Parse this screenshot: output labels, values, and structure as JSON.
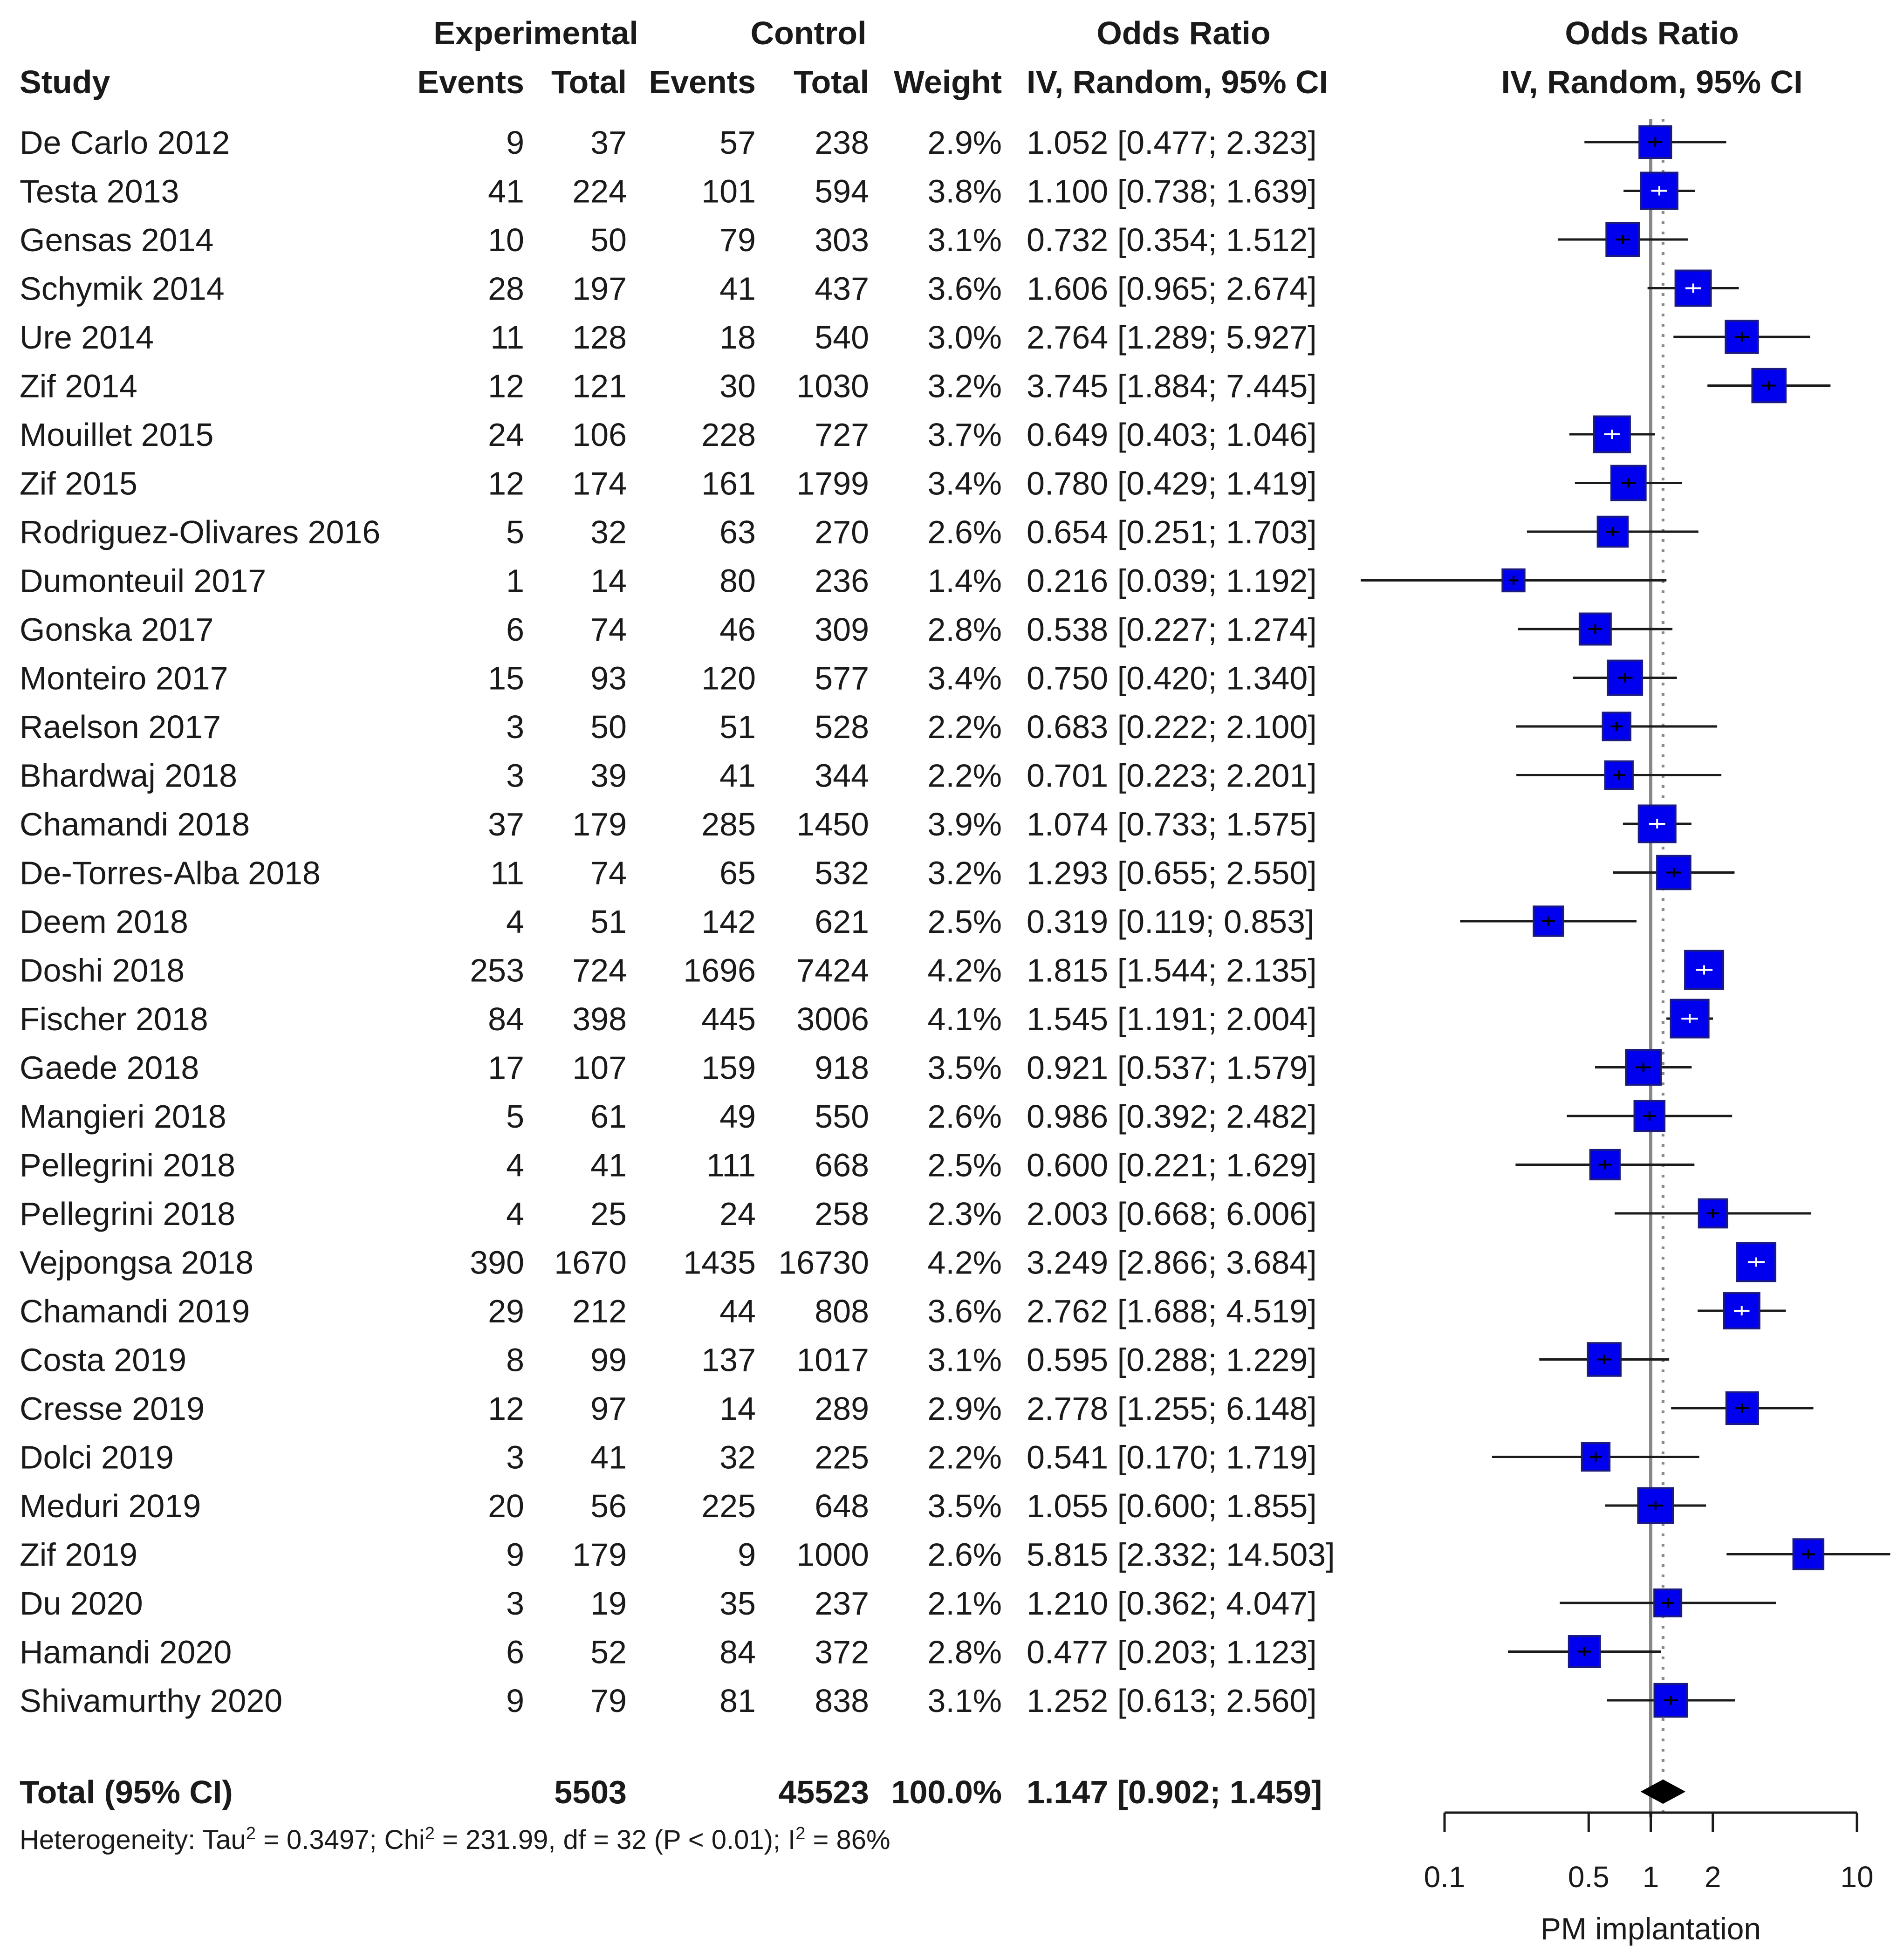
{
  "chart_data": {
    "type": "forest",
    "headers": {
      "experimental": "Experimental",
      "control": "Control",
      "odds_ratio_table": "Odds Ratio",
      "odds_ratio_plot": "Odds Ratio",
      "study": "Study",
      "exp_events": "Events",
      "exp_total": "Total",
      "ctl_events": "Events",
      "ctl_total": "Total",
      "weight": "Weight",
      "method_table": "IV, Random, 95% CI",
      "method_plot": "IV, Random, 95% CI"
    },
    "studies": [
      {
        "study": "De Carlo 2012",
        "exp_events": "9",
        "exp_total": "37",
        "ctl_events": "57",
        "ctl_total": "238",
        "weight": "2.9%",
        "ci_text": "1.052 [0.477;  2.323]",
        "or": 1.052,
        "lo": 0.477,
        "hi": 2.323,
        "w": 2.9
      },
      {
        "study": "Testa 2013",
        "exp_events": "41",
        "exp_total": "224",
        "ctl_events": "101",
        "ctl_total": "594",
        "weight": "3.8%",
        "ci_text": "1.100 [0.738;  1.639]",
        "or": 1.1,
        "lo": 0.738,
        "hi": 1.639,
        "w": 3.8
      },
      {
        "study": "Gensas 2014",
        "exp_events": "10",
        "exp_total": "50",
        "ctl_events": "79",
        "ctl_total": "303",
        "weight": "3.1%",
        "ci_text": "0.732 [0.354;  1.512]",
        "or": 0.732,
        "lo": 0.354,
        "hi": 1.512,
        "w": 3.1
      },
      {
        "study": "Schymik 2014",
        "exp_events": "28",
        "exp_total": "197",
        "ctl_events": "41",
        "ctl_total": "437",
        "weight": "3.6%",
        "ci_text": "1.606 [0.965;  2.674]",
        "or": 1.606,
        "lo": 0.965,
        "hi": 2.674,
        "w": 3.6
      },
      {
        "study": "Ure 2014",
        "exp_events": "11",
        "exp_total": "128",
        "ctl_events": "18",
        "ctl_total": "540",
        "weight": "3.0%",
        "ci_text": "2.764 [1.289;  5.927]",
        "or": 2.764,
        "lo": 1.289,
        "hi": 5.927,
        "w": 3.0
      },
      {
        "study": "Zif 2014",
        "exp_events": "12",
        "exp_total": "121",
        "ctl_events": "30",
        "ctl_total": "1030",
        "weight": "3.2%",
        "ci_text": "3.745 [1.884;  7.445]",
        "or": 3.745,
        "lo": 1.884,
        "hi": 7.445,
        "w": 3.2
      },
      {
        "study": "Mouillet 2015",
        "exp_events": "24",
        "exp_total": "106",
        "ctl_events": "228",
        "ctl_total": "727",
        "weight": "3.7%",
        "ci_text": "0.649 [0.403;  1.046]",
        "or": 0.649,
        "lo": 0.403,
        "hi": 1.046,
        "w": 3.7
      },
      {
        "study": "Zif 2015",
        "exp_events": "12",
        "exp_total": "174",
        "ctl_events": "161",
        "ctl_total": "1799",
        "weight": "3.4%",
        "ci_text": "0.780 [0.429;  1.419]",
        "or": 0.78,
        "lo": 0.429,
        "hi": 1.419,
        "w": 3.4
      },
      {
        "study": "Rodriguez-Olivares 2016",
        "exp_events": "5",
        "exp_total": "32",
        "ctl_events": "63",
        "ctl_total": "270",
        "weight": "2.6%",
        "ci_text": "0.654 [0.251;  1.703]",
        "or": 0.654,
        "lo": 0.251,
        "hi": 1.703,
        "w": 2.6
      },
      {
        "study": "Dumonteuil 2017",
        "exp_events": "1",
        "exp_total": "14",
        "ctl_events": "80",
        "ctl_total": "236",
        "weight": "1.4%",
        "ci_text": "0.216 [0.039;  1.192]",
        "or": 0.216,
        "lo": 0.039,
        "hi": 1.192,
        "w": 1.4
      },
      {
        "study": "Gonska 2017",
        "exp_events": "6",
        "exp_total": "74",
        "ctl_events": "46",
        "ctl_total": "309",
        "weight": "2.8%",
        "ci_text": "0.538 [0.227;  1.274]",
        "or": 0.538,
        "lo": 0.227,
        "hi": 1.274,
        "w": 2.8
      },
      {
        "study": "Monteiro 2017",
        "exp_events": "15",
        "exp_total": "93",
        "ctl_events": "120",
        "ctl_total": "577",
        "weight": "3.4%",
        "ci_text": "0.750 [0.420;  1.340]",
        "or": 0.75,
        "lo": 0.42,
        "hi": 1.34,
        "w": 3.4
      },
      {
        "study": "Raelson 2017",
        "exp_events": "3",
        "exp_total": "50",
        "ctl_events": "51",
        "ctl_total": "528",
        "weight": "2.2%",
        "ci_text": "0.683 [0.222;  2.100]",
        "or": 0.683,
        "lo": 0.222,
        "hi": 2.1,
        "w": 2.2
      },
      {
        "study": "Bhardwaj  2018",
        "exp_events": "3",
        "exp_total": "39",
        "ctl_events": "41",
        "ctl_total": "344",
        "weight": "2.2%",
        "ci_text": "0.701 [0.223;  2.201]",
        "or": 0.701,
        "lo": 0.223,
        "hi": 2.201,
        "w": 2.2
      },
      {
        "study": "Chamandi 2018",
        "exp_events": "37",
        "exp_total": "179",
        "ctl_events": "285",
        "ctl_total": "1450",
        "weight": "3.9%",
        "ci_text": "1.074 [0.733;  1.575]",
        "or": 1.074,
        "lo": 0.733,
        "hi": 1.575,
        "w": 3.9
      },
      {
        "study": "De-Torres-Alba 2018",
        "exp_events": "11",
        "exp_total": "74",
        "ctl_events": "65",
        "ctl_total": "532",
        "weight": "3.2%",
        "ci_text": "1.293 [0.655;  2.550]",
        "or": 1.293,
        "lo": 0.655,
        "hi": 2.55,
        "w": 3.2
      },
      {
        "study": "Deem 2018",
        "exp_events": "4",
        "exp_total": "51",
        "ctl_events": "142",
        "ctl_total": "621",
        "weight": "2.5%",
        "ci_text": "0.319 [0.119;  0.853]",
        "or": 0.319,
        "lo": 0.119,
        "hi": 0.853,
        "w": 2.5
      },
      {
        "study": "Doshi 2018",
        "exp_events": "253",
        "exp_total": "724",
        "ctl_events": "1696",
        "ctl_total": "7424",
        "weight": "4.2%",
        "ci_text": "1.815 [1.544;  2.135]",
        "or": 1.815,
        "lo": 1.544,
        "hi": 2.135,
        "w": 4.2
      },
      {
        "study": "Fischer 2018",
        "exp_events": "84",
        "exp_total": "398",
        "ctl_events": "445",
        "ctl_total": "3006",
        "weight": "4.1%",
        "ci_text": "1.545 [1.191;  2.004]",
        "or": 1.545,
        "lo": 1.191,
        "hi": 2.004,
        "w": 4.1
      },
      {
        "study": "Gaede 2018",
        "exp_events": "17",
        "exp_total": "107",
        "ctl_events": "159",
        "ctl_total": "918",
        "weight": "3.5%",
        "ci_text": "0.921 [0.537;  1.579]",
        "or": 0.921,
        "lo": 0.537,
        "hi": 1.579,
        "w": 3.5
      },
      {
        "study": "Mangieri 2018",
        "exp_events": "5",
        "exp_total": "61",
        "ctl_events": "49",
        "ctl_total": "550",
        "weight": "2.6%",
        "ci_text": "0.986 [0.392;  2.482]",
        "or": 0.986,
        "lo": 0.392,
        "hi": 2.482,
        "w": 2.6
      },
      {
        "study": "Pellegrini 2018",
        "exp_events": "4",
        "exp_total": "41",
        "ctl_events": "111",
        "ctl_total": "668",
        "weight": "2.5%",
        "ci_text": "0.600 [0.221;  1.629]",
        "or": 0.6,
        "lo": 0.221,
        "hi": 1.629,
        "w": 2.5
      },
      {
        "study": "Pellegrini 2018",
        "exp_events": "4",
        "exp_total": "25",
        "ctl_events": "24",
        "ctl_total": "258",
        "weight": "2.3%",
        "ci_text": "2.003 [0.668;  6.006]",
        "or": 2.003,
        "lo": 0.668,
        "hi": 6.006,
        "w": 2.3
      },
      {
        "study": "Vejpongsa 2018",
        "exp_events": "390",
        "exp_total": "1670",
        "ctl_events": "1435",
        "ctl_total": "16730",
        "weight": "4.2%",
        "ci_text": "3.249 [2.866;  3.684]",
        "or": 3.249,
        "lo": 2.866,
        "hi": 3.684,
        "w": 4.2
      },
      {
        "study": "Chamandi 2019",
        "exp_events": "29",
        "exp_total": "212",
        "ctl_events": "44",
        "ctl_total": "808",
        "weight": "3.6%",
        "ci_text": "2.762 [1.688;  4.519]",
        "or": 2.762,
        "lo": 1.688,
        "hi": 4.519,
        "w": 3.6
      },
      {
        "study": "Costa 2019",
        "exp_events": "8",
        "exp_total": "99",
        "ctl_events": "137",
        "ctl_total": "1017",
        "weight": "3.1%",
        "ci_text": "0.595 [0.288;  1.229]",
        "or": 0.595,
        "lo": 0.288,
        "hi": 1.229,
        "w": 3.1
      },
      {
        "study": "Cresse 2019",
        "exp_events": "12",
        "exp_total": "97",
        "ctl_events": "14",
        "ctl_total": "289",
        "weight": "2.9%",
        "ci_text": "2.778 [1.255;  6.148]",
        "or": 2.778,
        "lo": 1.255,
        "hi": 6.148,
        "w": 2.9
      },
      {
        "study": "Dolci 2019",
        "exp_events": "3",
        "exp_total": "41",
        "ctl_events": "32",
        "ctl_total": "225",
        "weight": "2.2%",
        "ci_text": "0.541 [0.170;  1.719]",
        "or": 0.541,
        "lo": 0.17,
        "hi": 1.719,
        "w": 2.2
      },
      {
        "study": "Meduri 2019",
        "exp_events": "20",
        "exp_total": "56",
        "ctl_events": "225",
        "ctl_total": "648",
        "weight": "3.5%",
        "ci_text": "1.055 [0.600;  1.855]",
        "or": 1.055,
        "lo": 0.6,
        "hi": 1.855,
        "w": 3.5
      },
      {
        "study": "Zif 2019",
        "exp_events": "9",
        "exp_total": "179",
        "ctl_events": "9",
        "ctl_total": "1000",
        "weight": "2.6%",
        "ci_text": "5.815 [2.332; 14.503]",
        "or": 5.815,
        "lo": 2.332,
        "hi": 14.503,
        "w": 2.6
      },
      {
        "study": "Du 2020",
        "exp_events": "3",
        "exp_total": "19",
        "ctl_events": "35",
        "ctl_total": "237",
        "weight": "2.1%",
        "ci_text": "1.210 [0.362;  4.047]",
        "or": 1.21,
        "lo": 0.362,
        "hi": 4.047,
        "w": 2.1
      },
      {
        "study": "Hamandi 2020",
        "exp_events": "6",
        "exp_total": "52",
        "ctl_events": "84",
        "ctl_total": "372",
        "weight": "2.8%",
        "ci_text": "0.477 [0.203;  1.123]",
        "or": 0.477,
        "lo": 0.203,
        "hi": 1.123,
        "w": 2.8
      },
      {
        "study": "Shivamurthy 2020",
        "exp_events": "9",
        "exp_total": "79",
        "ctl_events": "81",
        "ctl_total": "838",
        "weight": "3.1%",
        "ci_text": "1.252 [0.613;  2.560]",
        "or": 1.252,
        "lo": 0.613,
        "hi": 2.56,
        "w": 3.1
      }
    ],
    "total": {
      "label": "Total (95% CI)",
      "exp_total": "5503",
      "ctl_total": "45523",
      "weight": "100.0%",
      "ci_text": "1.147 [0.902;  1.459]",
      "or": 1.147,
      "lo": 0.902,
      "hi": 1.459
    },
    "heterogeneity": {
      "prefix": "Heterogeneity: Tau",
      "sup1": "2",
      "mid1": " = 0.3497; Chi",
      "sup2": "2",
      "mid2": " = 231.99, df = 32 (P < 0.01); I",
      "sup3": "2",
      "end": " = 86%"
    },
    "x_axis": {
      "scale": "log",
      "range": [
        0.1,
        10
      ],
      "ticks": [
        0.1,
        0.5,
        1,
        2,
        10
      ],
      "tick_labels": [
        "0.1",
        "0.5",
        "1",
        "2",
        "10"
      ],
      "label": "PM implantation",
      "reference_line": 1
    },
    "colors": {
      "square": "#0000ee",
      "square_stroke": "#1a1a80",
      "line": "#1a1a1a",
      "text": "#1a1a1a",
      "ref_line": "#888888"
    }
  }
}
